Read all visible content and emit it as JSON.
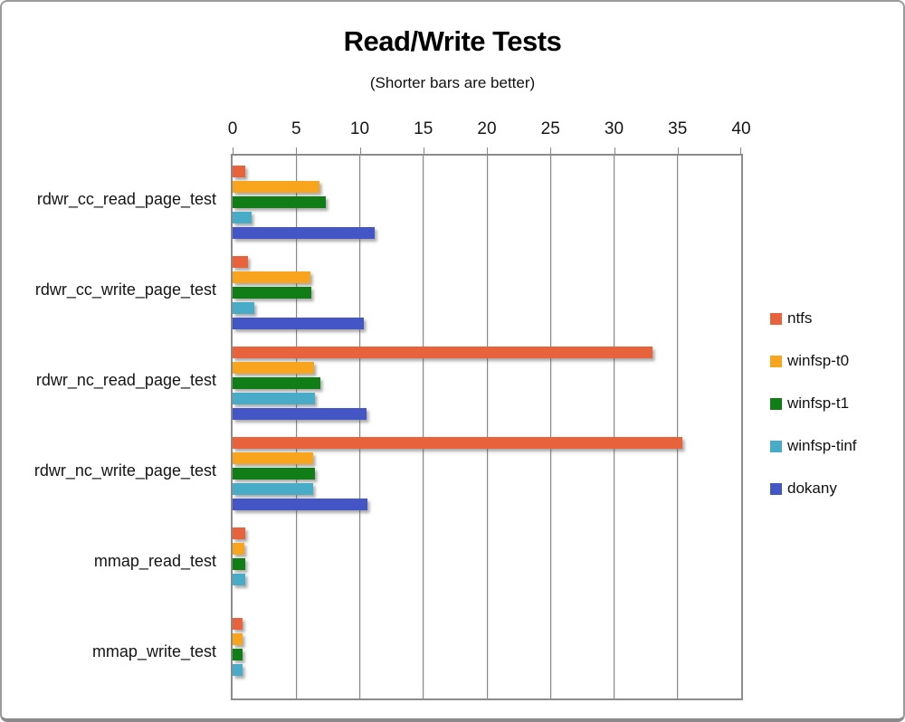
{
  "chart_data": {
    "type": "bar",
    "orientation": "horizontal",
    "title": "Read/Write Tests",
    "subtitle": "(Shorter bars are better)",
    "xlabel": "",
    "ylabel": "",
    "xlim": [
      0,
      40
    ],
    "x_ticks": [
      0,
      5,
      10,
      15,
      20,
      25,
      30,
      35,
      40
    ],
    "grid": "vertical",
    "legend_position": "right",
    "note": "shorter bars are better; dokany has no bars for mmap tests",
    "categories": [
      "rdwr_cc_read_page_test",
      "rdwr_cc_write_page_test",
      "rdwr_nc_read_page_test",
      "rdwr_nc_write_page_test",
      "mmap_read_test",
      "mmap_write_test"
    ],
    "series": [
      {
        "name": "ntfs",
        "color": "#E8623C",
        "values": [
          1.0,
          1.2,
          33.0,
          35.4,
          1.0,
          0.8
        ]
      },
      {
        "name": "winfsp-t0",
        "color": "#F8A41C",
        "values": [
          6.8,
          6.1,
          6.4,
          6.3,
          0.9,
          0.8
        ]
      },
      {
        "name": "winfsp-t1",
        "color": "#117D16",
        "values": [
          7.3,
          6.2,
          6.9,
          6.5,
          1.0,
          0.8
        ]
      },
      {
        "name": "winfsp-tinf",
        "color": "#48ABC8",
        "values": [
          1.5,
          1.7,
          6.5,
          6.3,
          1.0,
          0.8
        ]
      },
      {
        "name": "dokany",
        "color": "#4455C6",
        "values": [
          11.2,
          10.3,
          10.5,
          10.6,
          null,
          null
        ]
      }
    ]
  }
}
